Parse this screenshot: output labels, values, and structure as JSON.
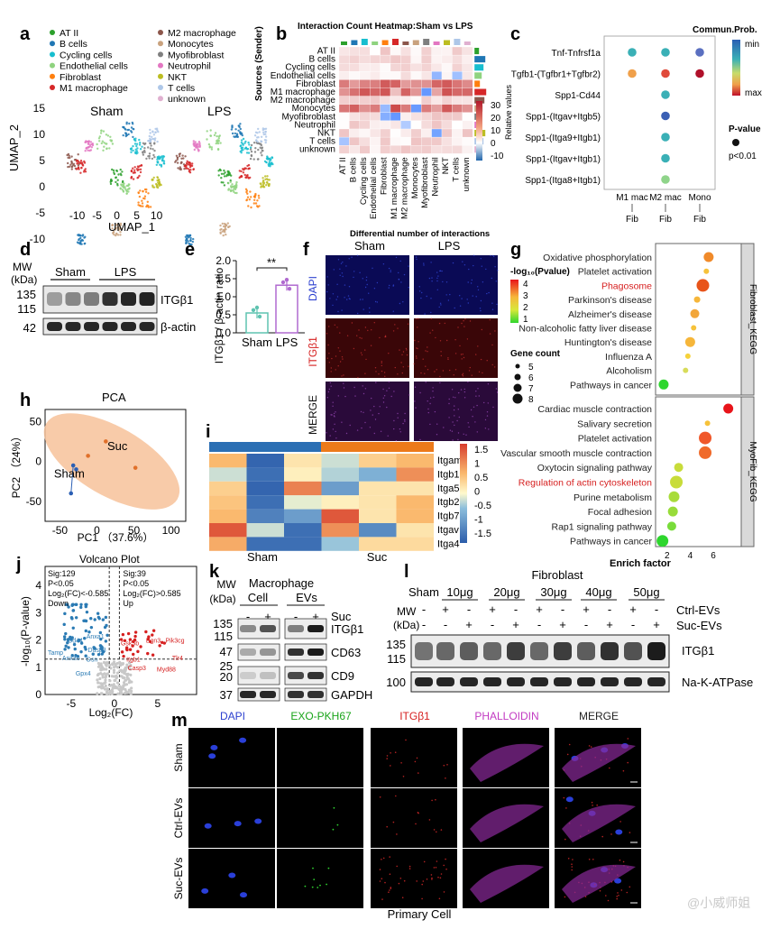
{
  "panels": {
    "a": {
      "letter": "a",
      "legend_left": [
        "AT II",
        "B cells",
        "Cycling cells",
        "Endothelial cells",
        "Fibroblast",
        "M1 macrophage"
      ],
      "legend_right": [
        "M2 macrophage",
        "Monocytes",
        "Myofibroblast",
        "Neutrophil",
        "NKT",
        "T cells",
        "unknown"
      ],
      "colors": {
        "AT II": "#2ca02c",
        "B cells": "#1f77b4",
        "Cycling cells": "#17becf",
        "Endothelial cells": "#8fd37f",
        "Fibroblast": "#ff7f0e",
        "M1 macrophage": "#d62728",
        "M2 macrophage": "#8c564b",
        "Monocytes": "#c9a27e",
        "Myofibroblast": "#7f7f7f",
        "Neutrophil": "#e377c2",
        "NKT": "#bcbd22",
        "T cells": "#aec7e8",
        "unknown": "#e0b0d0"
      },
      "left_title": "Sham",
      "right_title": "LPS",
      "y_label": "UMAP_2",
      "x_label": "UMAP_1",
      "y_ticks": [
        "15",
        "10",
        "5",
        "0",
        "-5",
        "-10"
      ],
      "x_ticks": [
        "-10",
        "-5",
        "0",
        "5",
        "10"
      ]
    },
    "b": {
      "letter": "b",
      "title": "Interaction Count Heatmap:Sham vs LPS",
      "y_title": "Sources (Sender)",
      "x_title": "Differential number of interactions",
      "rows": [
        "AT II",
        "B cells",
        "Cycling cells",
        "Endothelial cells",
        "Fibroblast",
        "M1 macrophage",
        "M2 macrophage",
        "Monocytes",
        "Myofibroblast",
        "Neutrophil",
        "NKT",
        "T cells",
        "unknown"
      ],
      "legend_title": "Relative values",
      "legend_ticks": [
        "30",
        "20",
        "10",
        "0",
        "-10"
      ]
    },
    "c": {
      "letter": "c",
      "rows": [
        "Tnf-Tnfrsf1a",
        "Tgfb1-(Tgfbr1+Tgfbr2)",
        "Spp1-Cd44",
        "Spp1-(Itgav+Itgb5)",
        "Spp1-(Itga9+Itgb1)",
        "Spp1-(Itgav+Itgb1)",
        "Spp1-(Itga8+Itgb1)"
      ],
      "cols_top": [
        "M1 mac",
        "M2 mac",
        "Mono"
      ],
      "col_bottom": "Fib",
      "legend_title": "Commun.Prob.",
      "legend_min": "min",
      "legend_max": "max",
      "p_title": "P-value",
      "p_label": "p<0.01"
    },
    "d": {
      "letter": "d",
      "mw": "MW\n(kDa)",
      "groups": [
        "Sham",
        "LPS"
      ],
      "markers": [
        "135",
        "115",
        "42"
      ],
      "labels": [
        "ITGβ1",
        "β-actin"
      ]
    },
    "e": {
      "letter": "e",
      "y_label": "ITGβ1 / β-actin ratio",
      "y_ticks": [
        "2.0",
        "1.5",
        "1.0",
        "0.5",
        "0.0"
      ],
      "categories": [
        "Sham",
        "LPS"
      ],
      "sig": "**"
    },
    "f": {
      "letter": "f",
      "cols": [
        "Sham",
        "LPS"
      ],
      "rows": [
        "DAPI",
        "ITGβ1",
        "MERGE"
      ]
    },
    "g": {
      "letter": "g",
      "legend_title": "-log₁₀(Pvalue)",
      "legend_ticks": [
        "4",
        "3",
        "2",
        "1"
      ],
      "size_title": "Gene count",
      "size_ticks": [
        "5",
        "6",
        "7",
        "8"
      ],
      "x_label": "Enrich factor",
      "x_ticks": [
        "2",
        "4",
        "6"
      ],
      "top_strip": "Fibroblast_KEGG",
      "bottom_strip": "MyoFib_KEGG",
      "top_terms": [
        "Oxidative phosphorylation",
        "Platelet activation",
        "Phagosome",
        "Parkinson's disease",
        "Alzheimer's disease",
        "Non-alcoholic fatty liver disease",
        "Huntington's disease",
        "Influenza A",
        "Alcoholism",
        "Pathways in cancer"
      ],
      "bottom_terms": [
        "Cardiac muscle contraction",
        "Salivary secretion",
        "Platelet activation",
        "Vascular smooth muscle contraction",
        "Oxytocin signaling pathway",
        "Regulation of actin cytoskeleton",
        "Purine metabolism",
        "Focal adhesion",
        "Rap1 signaling pathway",
        "Pathways in cancer"
      ]
    },
    "h": {
      "letter": "h",
      "title": "PCA",
      "y_label": "PC2 （24%）",
      "x_label": "PC1 （37.6%）",
      "y_ticks": [
        "50",
        "0",
        "-50"
      ],
      "x_ticks": [
        "-50",
        "0",
        "50",
        "100"
      ],
      "group_sham": "Sham",
      "group_suc": "Suc"
    },
    "i": {
      "letter": "i",
      "rows": [
        "Itgam",
        "Itgb1",
        "Itga5",
        "Itgb2",
        "Itgb7",
        "Itgav",
        "Itga4"
      ],
      "groups": [
        "Sham",
        "Suc"
      ],
      "legend_ticks": [
        "1.5",
        "1",
        "0.5",
        "0",
        "-0.5",
        "-1",
        "-1.5"
      ]
    },
    "j": {
      "letter": "j",
      "title": "Volcano Plot",
      "y_label": "-log₁₀(P-value)",
      "x_label": "Log₂(FC)",
      "y_ticks": [
        "4",
        "3",
        "2",
        "1",
        "0"
      ],
      "x_ticks": [
        "-5",
        "0",
        "5"
      ],
      "down_text": [
        "Sig:129",
        "P<0.05",
        "Log₂(FC)<-0.585",
        "Down"
      ],
      "up_text": [
        "Sig:39",
        "P<0.05",
        "Log₂(FC)>0.585",
        "Up"
      ],
      "down_genes": [
        "Anxa1",
        "Cd44",
        "Tamp",
        "Dusp3",
        "Anxa6",
        "Gsn",
        "Gpx4"
      ],
      "up_genes": [
        "Gsk3b",
        "Bgn3",
        "Pik3cg",
        "Itgb1",
        "Tlr4",
        "Casp3",
        "Myd88"
      ]
    },
    "k": {
      "letter": "k",
      "mw": "MW\n(kDa)",
      "title": "Macrophage",
      "cols": [
        "Cell",
        "EVs"
      ],
      "row_label": "Suc",
      "signs": [
        "-",
        "+",
        "-",
        "+"
      ],
      "markers": [
        "135",
        "115",
        "47",
        "25",
        "20",
        "37"
      ],
      "labels": [
        "ITGβ1",
        "CD63",
        "CD9",
        "GAPDH"
      ]
    },
    "l": {
      "letter": "l",
      "title": "Fibroblast",
      "mw": "MW\n(kDa)",
      "doses": [
        "Sham",
        "10μg",
        "20μg",
        "30μg",
        "40μg",
        "50μg"
      ],
      "rows": [
        "Ctrl-EVs",
        "Suc-EVs"
      ],
      "ctrl_signs": [
        "-",
        "+",
        "-",
        "+",
        "-",
        "+",
        "-",
        "+",
        "-",
        "+",
        "-"
      ],
      "suc_signs": [
        "-",
        "-",
        "+",
        "-",
        "+",
        "-",
        "+",
        "-",
        "+",
        "-",
        "+"
      ],
      "markers": [
        "135",
        "115",
        "100"
      ],
      "labels": [
        "ITGβ1",
        "Na-K-ATPase"
      ]
    },
    "m": {
      "letter": "m",
      "cols": [
        "DAPI",
        "EXO-PKH67",
        "ITGβ1",
        "PHALLOIDIN",
        "MERGE"
      ],
      "col_colors": [
        "#2b3fcf",
        "#19a419",
        "#d62020",
        "#c23ac2",
        "#222222"
      ],
      "rows": [
        "Sham",
        "Ctrl-EVs",
        "Suc-EVs"
      ],
      "footer": "Primary Cell"
    }
  },
  "watermark": "@小威师姐"
}
